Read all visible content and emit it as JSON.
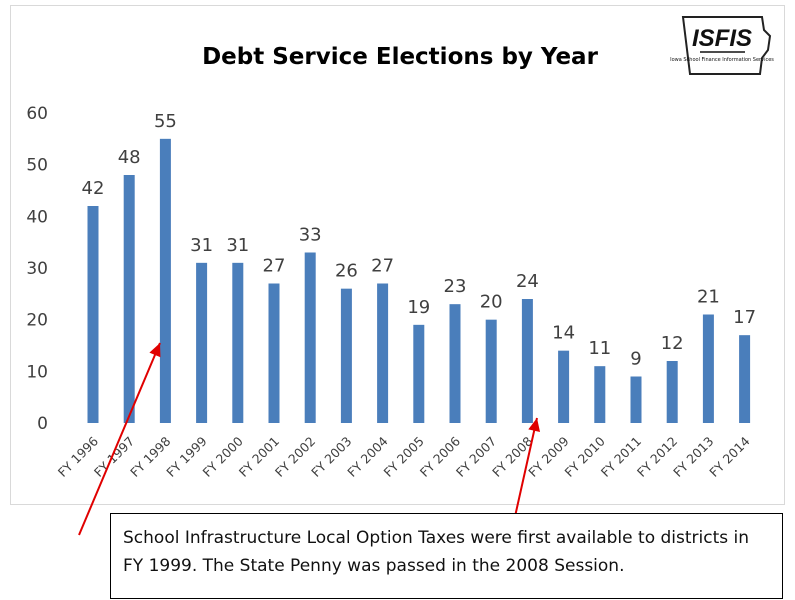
{
  "chart_data": {
    "type": "bar",
    "title": "Debt Service Elections by Year",
    "categories": [
      "FY 1996",
      "FY 1997",
      "FY 1998",
      "FY 1999",
      "FY 2000",
      "FY 2001",
      "FY 2002",
      "FY 2003",
      "FY 2004",
      "FY 2005",
      "FY 2006",
      "FY 2007",
      "FY 2008",
      "FY 2009",
      "FY 2010",
      "FY 2011",
      "FY 2012",
      "FY 2013",
      "FY 2014"
    ],
    "values": [
      42,
      48,
      55,
      31,
      31,
      27,
      33,
      26,
      27,
      19,
      23,
      20,
      24,
      14,
      11,
      9,
      12,
      21,
      17
    ],
    "ylim": [
      0,
      60
    ],
    "yticks": [
      0,
      10,
      20,
      30,
      40,
      50,
      60
    ],
    "xlabel": "",
    "ylabel": "",
    "grid": false,
    "bar_color": "#4a7ebb"
  },
  "logo": {
    "text": "ISFIS",
    "subtext": "Iowa School Finance Information Services"
  },
  "annotation": {
    "line1": "School Infrastructure Local Option Taxes were first available to districts in",
    "line2": "FY 1999.  The State Penny was passed in the 2008 Session.",
    "arrow_color": "#e00000"
  }
}
